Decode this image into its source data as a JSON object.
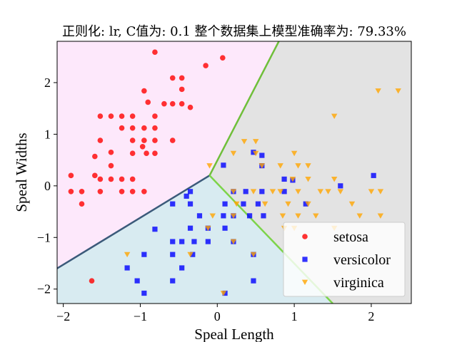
{
  "chart_data": {
    "type": "scatter",
    "title": "正则化: lr, C值为: 0.1 整个数据集上模型准确率为: 79.33%",
    "xlabel": "Speal Length",
    "ylabel": "Speal Widths",
    "xlim": [
      -2.08,
      2.52
    ],
    "ylim": [
      -2.28,
      2.8
    ],
    "xticks": [
      -2,
      -1,
      0,
      1,
      2
    ],
    "yticks": [
      -2,
      -1,
      0,
      1,
      2
    ],
    "grid": false,
    "legend_position": "lower-right",
    "background_regions": [
      {
        "class": "setosa",
        "color": "#fde8fb"
      },
      {
        "class": "versicolor",
        "color": "#d8ebf1"
      },
      {
        "class": "virginica",
        "color": "#e3e3e3"
      }
    ],
    "series": [
      {
        "name": "setosa",
        "color": "#ff0000",
        "marker": "circle",
        "points": [
          [
            -0.81,
            2.59
          ],
          [
            -0.15,
            2.33
          ],
          [
            0.07,
            2.48
          ],
          [
            -0.58,
            2.09
          ],
          [
            -0.46,
            2.09
          ],
          [
            -0.46,
            1.87
          ],
          [
            -1.38,
            1.35
          ],
          [
            -1.52,
            1.35
          ],
          [
            -1.24,
            1.35
          ],
          [
            -1.1,
            1.35
          ],
          [
            -0.9,
            1.62
          ],
          [
            -0.95,
            1.84
          ],
          [
            -0.69,
            1.59
          ],
          [
            -0.58,
            1.59
          ],
          [
            -0.46,
            1.59
          ],
          [
            -0.35,
            1.52
          ],
          [
            -0.81,
            1.35
          ],
          [
            -1.1,
            1.12
          ],
          [
            -0.95,
            1.12
          ],
          [
            -0.81,
            1.12
          ],
          [
            -1.24,
            1.12
          ],
          [
            -1.52,
            0.88
          ],
          [
            -1.1,
            0.88
          ],
          [
            -0.95,
            0.88
          ],
          [
            -0.81,
            0.88
          ],
          [
            -0.58,
            0.88
          ],
          [
            -1.59,
            0.57
          ],
          [
            -1.38,
            0.65
          ],
          [
            -1.1,
            0.63
          ],
          [
            -0.97,
            0.76
          ],
          [
            -0.92,
            0.63
          ],
          [
            -0.81,
            0.63
          ],
          [
            -1.38,
            0.39
          ],
          [
            -1.9,
            0.2
          ],
          [
            -1.59,
            0.2
          ],
          [
            -1.52,
            0.13
          ],
          [
            -1.24,
            0.13
          ],
          [
            -1.38,
            0.13
          ],
          [
            -1.1,
            0.13
          ],
          [
            -1.9,
            -0.11
          ],
          [
            -1.76,
            -0.11
          ],
          [
            -1.52,
            -0.11
          ],
          [
            -1.24,
            -0.11
          ],
          [
            -1.1,
            -0.11
          ],
          [
            -0.95,
            -0.11
          ],
          [
            -1.76,
            -0.35
          ],
          [
            -1.63,
            -1.84
          ]
        ]
      },
      {
        "name": "versicolor",
        "color": "#0000ff",
        "marker": "square",
        "points": [
          [
            0.58,
            0.59
          ],
          [
            0.47,
            0.65
          ],
          [
            0.58,
            0.39
          ],
          [
            0.08,
            0.4
          ],
          [
            0.87,
            0.13
          ],
          [
            0.98,
            0.11
          ],
          [
            2.03,
            0.2
          ],
          [
            1.6,
            0.0
          ],
          [
            0.21,
            -0.11
          ],
          [
            0.37,
            -0.11
          ],
          [
            0.58,
            -0.11
          ],
          [
            0.87,
            -0.11
          ],
          [
            -0.35,
            -0.11
          ],
          [
            -0.4,
            -0.2
          ],
          [
            -0.58,
            -0.35
          ],
          [
            -0.35,
            -0.35
          ],
          [
            0.1,
            -0.35
          ],
          [
            0.34,
            -0.35
          ],
          [
            0.53,
            -0.35
          ],
          [
            -0.23,
            -0.58
          ],
          [
            0.08,
            -0.58
          ],
          [
            0.21,
            -0.58
          ],
          [
            0.42,
            -0.58
          ],
          [
            0.6,
            -0.58
          ],
          [
            1.15,
            -0.35
          ],
          [
            -0.35,
            -0.82
          ],
          [
            -0.12,
            -0.82
          ],
          [
            0.1,
            -0.82
          ],
          [
            -0.81,
            -0.84
          ],
          [
            -0.46,
            -1.08
          ],
          [
            -0.3,
            -1.08
          ],
          [
            -0.12,
            -1.08
          ],
          [
            0.21,
            -1.08
          ],
          [
            -0.58,
            -1.08
          ],
          [
            -0.58,
            -1.33
          ],
          [
            -0.32,
            -1.33
          ],
          [
            0.47,
            -1.33
          ],
          [
            -0.95,
            -1.33
          ],
          [
            -1.17,
            -1.59
          ],
          [
            -0.46,
            -1.59
          ],
          [
            -1.04,
            -1.84
          ],
          [
            -0.58,
            -1.84
          ],
          [
            0.47,
            -1.84
          ],
          [
            0.1,
            -2.08
          ],
          [
            -0.95,
            -2.08
          ]
        ]
      },
      {
        "name": "virginica",
        "color": "#ffa500",
        "marker": "triangle-down",
        "points": [
          [
            2.09,
            1.84
          ],
          [
            2.35,
            1.84
          ],
          [
            1.52,
            1.35
          ],
          [
            0.5,
            0.86
          ],
          [
            0.35,
            0.86
          ],
          [
            1.0,
            0.63
          ],
          [
            0.5,
            0.63
          ],
          [
            0.21,
            0.63
          ],
          [
            -0.1,
            0.39
          ],
          [
            0.58,
            0.39
          ],
          [
            0.82,
            0.39
          ],
          [
            1.05,
            0.39
          ],
          [
            1.18,
            0.39
          ],
          [
            0.98,
            0.13
          ],
          [
            1.18,
            0.13
          ],
          [
            1.52,
            0.13
          ],
          [
            0.21,
            -0.11
          ],
          [
            0.47,
            -0.11
          ],
          [
            0.72,
            -0.11
          ],
          [
            0.82,
            -0.11
          ],
          [
            1.05,
            -0.11
          ],
          [
            1.34,
            -0.11
          ],
          [
            1.44,
            -0.11
          ],
          [
            1.6,
            -0.11
          ],
          [
            1.75,
            -0.35
          ],
          [
            0.25,
            -0.35
          ],
          [
            0.62,
            -0.35
          ],
          [
            0.92,
            -0.35
          ],
          [
            1.18,
            -0.35
          ],
          [
            2.0,
            -0.11
          ],
          [
            2.12,
            -0.11
          ],
          [
            -0.06,
            -0.58
          ],
          [
            0.21,
            -0.58
          ],
          [
            0.85,
            -0.58
          ],
          [
            1.05,
            -0.58
          ],
          [
            1.28,
            -0.58
          ],
          [
            1.85,
            -0.58
          ],
          [
            2.12,
            -0.58
          ],
          [
            -0.12,
            -0.82
          ],
          [
            0.87,
            -0.82
          ],
          [
            1.0,
            -0.82
          ],
          [
            1.52,
            -0.82
          ],
          [
            0.21,
            -1.08
          ],
          [
            -0.35,
            -1.33
          ],
          [
            0.47,
            -1.33
          ],
          [
            -1.17,
            -1.33
          ],
          [
            0.08,
            -2.08
          ]
        ]
      }
    ]
  }
}
